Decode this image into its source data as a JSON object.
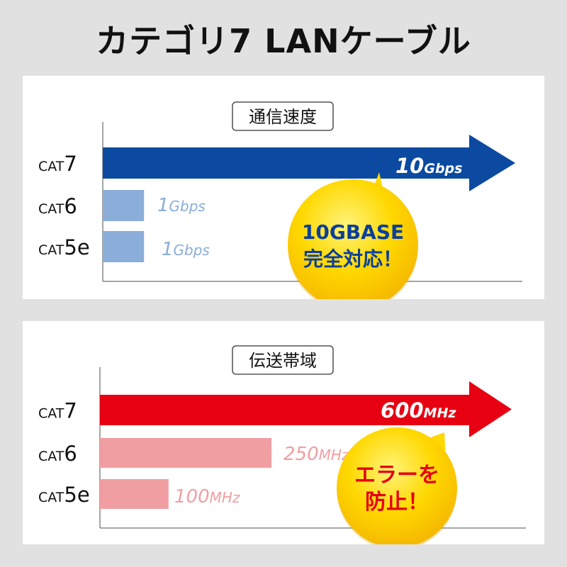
{
  "title": "カテゴリ7 LANケーブル",
  "chart_data": [
    {
      "type": "bar",
      "orientation": "horizontal",
      "title": "通信速度",
      "categories": [
        "CAT7",
        "CAT6",
        "CAT5e"
      ],
      "category_parts": [
        [
          "CAT",
          "7"
        ],
        [
          "CAT",
          "6"
        ],
        [
          "CAT",
          "5e"
        ]
      ],
      "values": [
        10,
        1,
        1
      ],
      "unit": "Gbps",
      "value_labels": [
        [
          "10",
          "Gbps"
        ],
        [
          "1",
          "Gbps"
        ],
        [
          "1",
          "Gbps"
        ]
      ],
      "colors": {
        "highlight": "#0b4aa0",
        "other": "#8badd9",
        "label_other": "#8badd9"
      },
      "callout": {
        "lines": [
          "10GBASE",
          "完全対応！"
        ],
        "text_color": "#0b3f9a",
        "fill": "#ffd800"
      }
    },
    {
      "type": "bar",
      "orientation": "horizontal",
      "title": "伝送帯域",
      "categories": [
        "CAT7",
        "CAT6",
        "CAT5e"
      ],
      "category_parts": [
        [
          "CAT",
          "7"
        ],
        [
          "CAT",
          "6"
        ],
        [
          "CAT",
          "5e"
        ]
      ],
      "values": [
        600,
        250,
        100
      ],
      "unit": "MHz",
      "value_labels": [
        [
          "600",
          "MHz"
        ],
        [
          "250",
          "MHz"
        ],
        [
          "100",
          "MHz"
        ]
      ],
      "colors": {
        "highlight": "#e60012",
        "other": "#f19ea2",
        "label_other": "#f19ea2"
      },
      "callout": {
        "lines": [
          "エラーを",
          "防止！"
        ],
        "text_color": "#e60012",
        "fill": "#ffd800"
      }
    }
  ]
}
